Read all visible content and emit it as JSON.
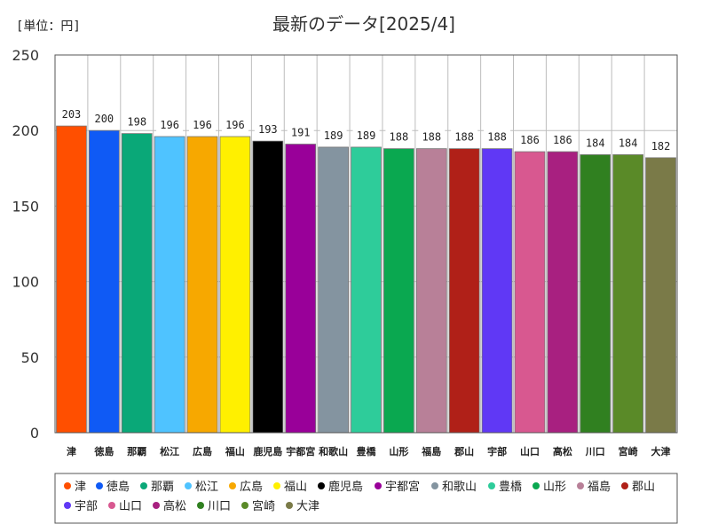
{
  "chart_data": {
    "type": "bar",
    "title": "最新のデータ[2025/4]",
    "unit_label": "[単位：円]",
    "xlabel": "",
    "ylabel": "",
    "ylim": [
      0,
      250
    ],
    "yticks": [
      0,
      50,
      100,
      150,
      200,
      250
    ],
    "grid": true,
    "legend_position": "bottom",
    "categories": [
      "津",
      "徳島",
      "那覇",
      "松江",
      "広島",
      "福山",
      "鹿児島",
      "宇都宮",
      "和歌山",
      "豊橋",
      "山形",
      "福島",
      "郡山",
      "宇部",
      "山口",
      "高松",
      "川口",
      "宮崎",
      "大津"
    ],
    "values": [
      203,
      200,
      198,
      196,
      196,
      196,
      193,
      191,
      189,
      189,
      188,
      188,
      188,
      188,
      186,
      186,
      184,
      184,
      182
    ],
    "colors": [
      "#ff4f00",
      "#0f5af5",
      "#0aa878",
      "#4fc3ff",
      "#f7a800",
      "#fff000",
      "#000000",
      "#990099",
      "#8494a0",
      "#2ecc9a",
      "#0aa850",
      "#b88098",
      "#b02018",
      "#6038f5",
      "#d85890",
      "#a82080",
      "#308020",
      "#5a8a28",
      "#7a7a48"
    ]
  }
}
